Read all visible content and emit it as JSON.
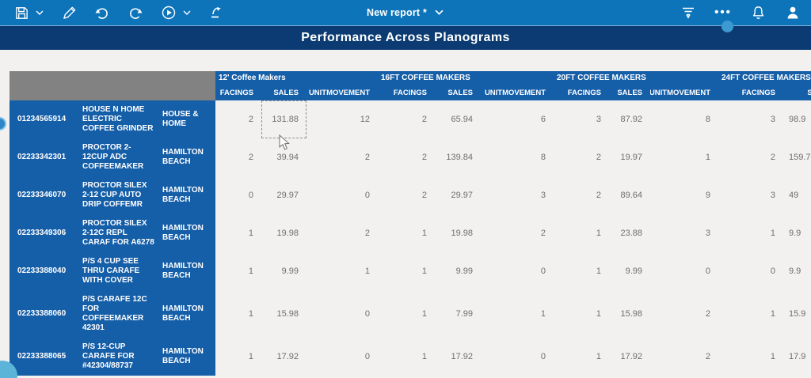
{
  "toolbar": {
    "report_name": "New report *",
    "ellipsis_label": "•••",
    "left_icons": [
      "save-icon",
      "save-dropdown-chevron",
      "edit-pencil-icon",
      "undo-icon",
      "redo-icon",
      "play-icon",
      "play-dropdown-chevron",
      "upload-icon"
    ],
    "right_icons": [
      "filter-icon",
      "more-options-icon",
      "notifications-bell-icon",
      "account-person-icon"
    ]
  },
  "title_bar": {
    "title": "Performance Across Planograms"
  },
  "table": {
    "groups": [
      {
        "label": "12' Coffee Makers",
        "columns": [
          "FACINGS",
          "SALES",
          "UNITMOVEMENT"
        ]
      },
      {
        "label": "16FT COFFEE MAKERS",
        "columns": [
          "FACINGS",
          "SALES",
          "UNITMOVEMENT"
        ]
      },
      {
        "label": "20FT COFFEE MAKERS",
        "columns": [
          "FACINGS",
          "SALES",
          "UNITMOVEMENT"
        ]
      },
      {
        "label": "24FT COFFEE MAKERS",
        "columns": [
          "FACINGS",
          "SALES"
        ]
      }
    ],
    "rows": [
      {
        "id": "01234565914",
        "description": "HOUSE N HOME ELECTRIC COFFEE GRINDER",
        "brand": "HOUSE & HOME",
        "values": [
          "2",
          "131.88",
          "12",
          "2",
          "65.94",
          "6",
          "3",
          "87.92",
          "8",
          "3",
          "98.9"
        ]
      },
      {
        "id": "02233342301",
        "description": "PROCTOR 2-12CUP ADC COFFEEMAKER",
        "brand": "HAMILTON BEACH",
        "values": [
          "2",
          "39.94",
          "2",
          "2",
          "139.84",
          "8",
          "2",
          "19.97",
          "1",
          "2",
          "159.7"
        ]
      },
      {
        "id": "02233346070",
        "description": "PROCTOR SILEX 2-12 CUP AUTO DRIP COFFEMR",
        "brand": "HAMILTON BEACH",
        "values": [
          "0",
          "29.97",
          "0",
          "2",
          "29.97",
          "3",
          "2",
          "89.64",
          "9",
          "3",
          "49"
        ]
      },
      {
        "id": "02233349306",
        "description": "PROCTOR SILEX 2-12C REPL CARAF FOR A6278",
        "brand": "HAMILTON BEACH",
        "values": [
          "1",
          "19.98",
          "2",
          "1",
          "19.98",
          "2",
          "1",
          "23.88",
          "3",
          "1",
          "9.9"
        ]
      },
      {
        "id": "02233388040",
        "description": "P/S 4 CUP SEE THRU CARAFE WITH COVER",
        "brand": "HAMILTON BEACH",
        "values": [
          "1",
          "9.99",
          "1",
          "1",
          "9.99",
          "0",
          "1",
          "9.99",
          "0",
          "0",
          "9.9"
        ]
      },
      {
        "id": "02233388060",
        "description": "P/S CARAFE 12C FOR COFFEEMAKER 42301",
        "brand": "HAMILTON BEACH",
        "values": [
          "1",
          "15.98",
          "0",
          "1",
          "7.99",
          "1",
          "1",
          "15.98",
          "2",
          "1",
          "15.9"
        ]
      },
      {
        "id": "02233388065",
        "description": "P/S 12-CUP CARAFE FOR #42304/88737",
        "brand": "HAMILTON BEACH",
        "values": [
          "1",
          "17.92",
          "0",
          "1",
          "17.92",
          "0",
          "1",
          "17.92",
          "2",
          "1",
          "17.9"
        ]
      }
    ],
    "selected_cell": {
      "row_index": 0,
      "group": "12' Coffee Makers",
      "column": "SALES",
      "value": "131.88"
    }
  },
  "colors": {
    "toolbar_blue": "#0d74ba",
    "title_navy": "#0b3b72",
    "table_blue": "#155ea8",
    "corner_gray": "#828282",
    "page_background": "#f2f1ef",
    "data_text_gray": "#6f6f6f"
  }
}
